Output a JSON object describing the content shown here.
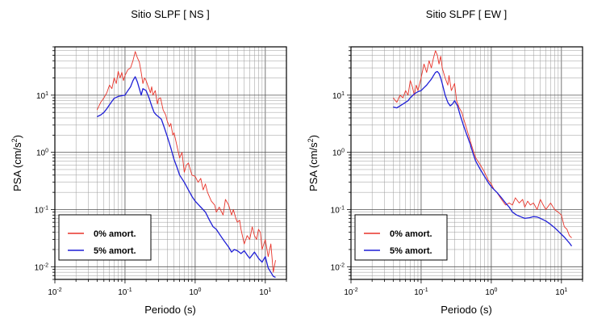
{
  "chart_data": [
    {
      "type": "line",
      "title": "Sitio SLPF [ NS ]",
      "xlabel": "Periodo (s)",
      "ylabel": "PSA (cm/s",
      "ylabel_sup": "2",
      "ylabel_end": ")",
      "xscale": "log",
      "yscale": "log",
      "xlim": [
        0.01,
        20
      ],
      "ylim": [
        0.006,
        70
      ],
      "grid": true,
      "legend_position": "bottom-left",
      "x_ticks": [
        {
          "base": "10",
          "exp": "-2"
        },
        {
          "base": "10",
          "exp": "-1"
        },
        {
          "base": "10",
          "exp": "0"
        },
        {
          "base": "10",
          "exp": "1"
        }
      ],
      "y_ticks": [
        {
          "base": "10",
          "exp": "-2"
        },
        {
          "base": "10",
          "exp": "-1"
        },
        {
          "base": "10",
          "exp": "0"
        },
        {
          "base": "10",
          "exp": "1"
        }
      ],
      "series": [
        {
          "name": "0% amort.",
          "color": "#e8342a",
          "x": [
            0.04,
            0.045,
            0.05,
            0.055,
            0.06,
            0.065,
            0.07,
            0.075,
            0.08,
            0.085,
            0.09,
            0.095,
            0.1,
            0.11,
            0.12,
            0.13,
            0.14,
            0.15,
            0.16,
            0.17,
            0.18,
            0.19,
            0.2,
            0.21,
            0.22,
            0.23,
            0.24,
            0.25,
            0.27,
            0.29,
            0.3,
            0.32,
            0.35,
            0.38,
            0.4,
            0.43,
            0.45,
            0.48,
            0.5,
            0.55,
            0.6,
            0.65,
            0.7,
            0.75,
            0.8,
            0.9,
            1.0,
            1.1,
            1.2,
            1.3,
            1.4,
            1.5,
            1.7,
            1.9,
            2.0,
            2.2,
            2.5,
            2.7,
            3.0,
            3.3,
            3.5,
            3.8,
            4.0,
            4.3,
            4.5,
            5.0,
            5.5,
            6.0,
            6.5,
            7.0,
            7.5,
            8.0,
            8.5,
            9.0,
            10.0,
            11.0,
            12.0,
            13.0,
            14.0
          ],
          "y": [
            5.5,
            7.5,
            9.0,
            11.0,
            15.0,
            13.0,
            20.0,
            16.0,
            26.0,
            20.0,
            25.0,
            18.0,
            22.0,
            28.0,
            30.0,
            40.0,
            58.0,
            45.0,
            38.0,
            25.0,
            16.0,
            20.0,
            18.0,
            15.0,
            13.0,
            11.0,
            14.0,
            10.0,
            12.0,
            7.0,
            8.5,
            9.0,
            5.5,
            4.5,
            3.5,
            2.8,
            3.2,
            2.0,
            2.2,
            1.3,
            0.8,
            1.0,
            0.45,
            0.6,
            0.65,
            0.4,
            0.38,
            0.3,
            0.35,
            0.22,
            0.28,
            0.2,
            0.14,
            0.12,
            0.09,
            0.11,
            0.08,
            0.15,
            0.12,
            0.08,
            0.1,
            0.07,
            0.06,
            0.065,
            0.045,
            0.025,
            0.035,
            0.03,
            0.05,
            0.035,
            0.03,
            0.045,
            0.04,
            0.02,
            0.03,
            0.015,
            0.025,
            0.008,
            0.013
          ]
        },
        {
          "name": "5% amort.",
          "color": "#1f1fd6",
          "x": [
            0.04,
            0.045,
            0.05,
            0.055,
            0.06,
            0.065,
            0.07,
            0.08,
            0.09,
            0.1,
            0.11,
            0.12,
            0.13,
            0.14,
            0.15,
            0.16,
            0.17,
            0.18,
            0.2,
            0.22,
            0.24,
            0.26,
            0.28,
            0.3,
            0.33,
            0.36,
            0.4,
            0.45,
            0.5,
            0.55,
            0.6,
            0.7,
            0.8,
            0.9,
            1.0,
            1.2,
            1.4,
            1.6,
            1.8,
            2.0,
            2.3,
            2.6,
            3.0,
            3.3,
            3.6,
            4.0,
            4.5,
            5.0,
            5.5,
            6.0,
            7.0,
            8.0,
            9.0,
            10.0,
            11.0,
            12.0,
            13.0,
            14.0
          ],
          "y": [
            4.2,
            4.5,
            5.0,
            5.8,
            6.8,
            7.8,
            8.8,
            9.5,
            9.8,
            10.0,
            12.0,
            14.0,
            18.0,
            21.0,
            17.0,
            13.0,
            10.0,
            13.0,
            12.0,
            9.0,
            6.5,
            5.0,
            4.5,
            4.2,
            3.8,
            2.8,
            1.9,
            1.2,
            0.75,
            0.55,
            0.4,
            0.3,
            0.22,
            0.17,
            0.14,
            0.11,
            0.09,
            0.065,
            0.05,
            0.045,
            0.035,
            0.028,
            0.022,
            0.018,
            0.02,
            0.019,
            0.017,
            0.019,
            0.016,
            0.014,
            0.018,
            0.014,
            0.012,
            0.015,
            0.0095,
            0.008,
            0.0068,
            0.0065
          ]
        }
      ]
    },
    {
      "type": "line",
      "title": "Sitio SLPF [ EW ]",
      "xlabel": "Periodo (s)",
      "ylabel": "PSA (cm/s",
      "ylabel_sup": "2",
      "ylabel_end": ")",
      "xscale": "log",
      "yscale": "log",
      "xlim": [
        0.01,
        20
      ],
      "ylim": [
        0.006,
        70
      ],
      "grid": true,
      "legend_position": "bottom-left",
      "x_ticks": [
        {
          "base": "10",
          "exp": "-2"
        },
        {
          "base": "10",
          "exp": "-1"
        },
        {
          "base": "10",
          "exp": "0"
        },
        {
          "base": "10",
          "exp": "1"
        }
      ],
      "y_ticks": [
        {
          "base": "10",
          "exp": "-2"
        },
        {
          "base": "10",
          "exp": "-1"
        },
        {
          "base": "10",
          "exp": "0"
        },
        {
          "base": "10",
          "exp": "1"
        }
      ],
      "series": [
        {
          "name": "0% amort.",
          "color": "#e8342a",
          "x": [
            0.04,
            0.045,
            0.05,
            0.055,
            0.06,
            0.065,
            0.07,
            0.075,
            0.08,
            0.085,
            0.09,
            0.1,
            0.11,
            0.12,
            0.13,
            0.14,
            0.15,
            0.16,
            0.17,
            0.18,
            0.19,
            0.2,
            0.22,
            0.24,
            0.25,
            0.27,
            0.3,
            0.32,
            0.35,
            0.38,
            0.4,
            0.45,
            0.5,
            0.55,
            0.6,
            0.7,
            0.8,
            0.9,
            1.0,
            1.1,
            1.2,
            1.4,
            1.6,
            1.8,
            2.0,
            2.2,
            2.5,
            2.8,
            3.0,
            3.3,
            3.6,
            4.0,
            4.5,
            5.0,
            5.5,
            6.0,
            7.0,
            8.0,
            9.0,
            10.0,
            11.0,
            12.0,
            13.0,
            14.0
          ],
          "y": [
            9.0,
            7.5,
            10.0,
            9.0,
            12.0,
            10.0,
            18.0,
            14.0,
            10.0,
            15.0,
            12.0,
            20.0,
            35.0,
            25.0,
            40.0,
            30.0,
            45.0,
            60.0,
            50.0,
            35.0,
            48.0,
            30.0,
            20.0,
            15.0,
            22.0,
            12.0,
            16.0,
            8.0,
            6.0,
            5.0,
            4.0,
            2.5,
            1.6,
            1.1,
            0.8,
            0.6,
            0.45,
            0.33,
            0.28,
            0.22,
            0.2,
            0.15,
            0.12,
            0.13,
            0.12,
            0.16,
            0.13,
            0.15,
            0.11,
            0.14,
            0.12,
            0.13,
            0.1,
            0.15,
            0.12,
            0.1,
            0.13,
            0.1,
            0.09,
            0.08,
            0.05,
            0.045,
            0.035,
            0.032
          ]
        },
        {
          "name": "5% amort.",
          "color": "#1f1fd6",
          "x": [
            0.04,
            0.045,
            0.05,
            0.055,
            0.06,
            0.065,
            0.07,
            0.08,
            0.09,
            0.1,
            0.11,
            0.12,
            0.13,
            0.14,
            0.15,
            0.16,
            0.17,
            0.18,
            0.19,
            0.2,
            0.22,
            0.24,
            0.26,
            0.28,
            0.3,
            0.33,
            0.36,
            0.4,
            0.45,
            0.5,
            0.55,
            0.6,
            0.7,
            0.8,
            0.9,
            1.0,
            1.2,
            1.4,
            1.6,
            1.8,
            2.0,
            2.3,
            2.6,
            3.0,
            3.5,
            4.0,
            4.5,
            5.0,
            6.0,
            7.0,
            8.0,
            9.0,
            10.0,
            11.0,
            12.0,
            13.0,
            14.0
          ],
          "y": [
            6.2,
            6.0,
            6.5,
            7.0,
            7.5,
            8.0,
            9.0,
            10.5,
            11.5,
            12.0,
            13.5,
            15.0,
            17.0,
            19.0,
            22.0,
            25.0,
            26.0,
            24.0,
            20.0,
            16.0,
            10.0,
            7.5,
            6.5,
            7.0,
            8.0,
            6.5,
            4.5,
            3.0,
            2.0,
            1.4,
            0.95,
            0.7,
            0.5,
            0.38,
            0.3,
            0.25,
            0.2,
            0.16,
            0.13,
            0.11,
            0.09,
            0.08,
            0.075,
            0.07,
            0.072,
            0.075,
            0.074,
            0.07,
            0.063,
            0.055,
            0.048,
            0.042,
            0.037,
            0.033,
            0.029,
            0.026,
            0.023
          ]
        }
      ]
    }
  ]
}
